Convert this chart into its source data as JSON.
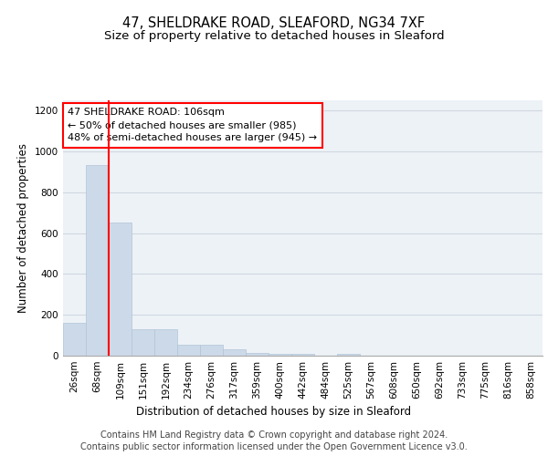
{
  "title_line1": "47, SHELDRAKE ROAD, SLEAFORD, NG34 7XF",
  "title_line2": "Size of property relative to detached houses in Sleaford",
  "xlabel": "Distribution of detached houses by size in Sleaford",
  "ylabel": "Number of detached properties",
  "categories": [
    "26sqm",
    "68sqm",
    "109sqm",
    "151sqm",
    "192sqm",
    "234sqm",
    "276sqm",
    "317sqm",
    "359sqm",
    "400sqm",
    "442sqm",
    "484sqm",
    "525sqm",
    "567sqm",
    "608sqm",
    "650sqm",
    "692sqm",
    "733sqm",
    "775sqm",
    "816sqm",
    "858sqm"
  ],
  "values": [
    160,
    935,
    650,
    130,
    130,
    55,
    55,
    30,
    15,
    10,
    10,
    0,
    10,
    0,
    0,
    0,
    0,
    0,
    0,
    0,
    0
  ],
  "bar_color": "#ccd9e8",
  "bar_edge_color": "#b0c4d8",
  "red_line_index": 2,
  "annotation_text": "47 SHELDRAKE ROAD: 106sqm\n← 50% of detached houses are smaller (985)\n48% of semi-detached houses are larger (945) →",
  "annotation_box_facecolor": "white",
  "annotation_box_edgecolor": "red",
  "red_line_color": "red",
  "ylim": [
    0,
    1250
  ],
  "yticks": [
    0,
    200,
    400,
    600,
    800,
    1000,
    1200
  ],
  "grid_color": "#d0d8e0",
  "background_color": "#edf2f7",
  "footer_line1": "Contains HM Land Registry data © Crown copyright and database right 2024.",
  "footer_line2": "Contains public sector information licensed under the Open Government Licence v3.0.",
  "title_fontsize": 10.5,
  "subtitle_fontsize": 9.5,
  "axis_label_fontsize": 8.5,
  "tick_fontsize": 7.5,
  "annotation_fontsize": 8,
  "footer_fontsize": 7
}
